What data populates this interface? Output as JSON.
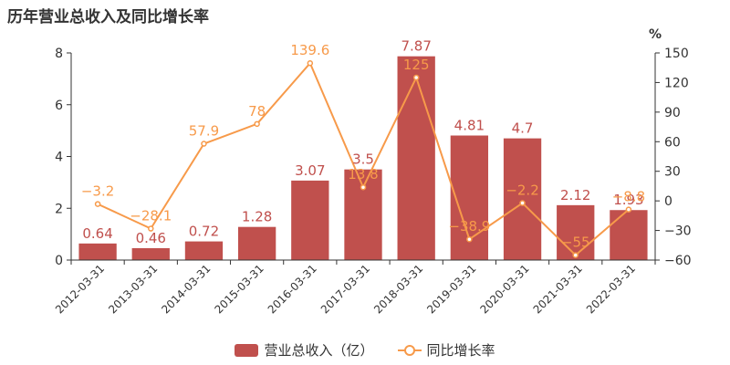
{
  "chart_data": {
    "type": "bar+line",
    "title": "历年营业总收入及同比增长率",
    "categories": [
      "2012-03-31",
      "2013-03-31",
      "2014-03-31",
      "2015-03-31",
      "2016-03-31",
      "2017-03-31",
      "2018-03-31",
      "2019-03-31",
      "2020-03-31",
      "2021-03-31",
      "2022-03-31"
    ],
    "series": [
      {
        "name": "营业总收入（亿）",
        "type": "bar",
        "axis": "left",
        "color": "#c0504d",
        "values": [
          0.64,
          0.46,
          0.72,
          1.28,
          3.07,
          3.5,
          7.87,
          4.81,
          4.7,
          2.12,
          1.93
        ],
        "labels": [
          "0.64",
          "0.46",
          "0.72",
          "1.28",
          "3.07",
          "3.5",
          "7.87",
          "4.81",
          "4.7",
          "2.12",
          "1.93"
        ]
      },
      {
        "name": "同比增长率",
        "type": "line",
        "axis": "right",
        "color": "#f79a4a",
        "values": [
          -3.2,
          -28.1,
          57.9,
          78,
          139.6,
          13.8,
          125,
          -38.9,
          -2.2,
          -55,
          -8.8
        ],
        "labels": [
          "−3.2",
          "−28.1",
          "57.9",
          "78",
          "139.6",
          "13.8",
          "125",
          "−38.9",
          "−2.2",
          "−55",
          "−8.8"
        ]
      }
    ],
    "y_left": {
      "min": 0,
      "max": 8,
      "ticks": [
        0,
        2,
        4,
        6,
        8
      ],
      "tick_labels": [
        "0",
        "2",
        "4",
        "6",
        "8"
      ]
    },
    "y_right": {
      "min": -60,
      "max": 150,
      "unit_label": "%",
      "ticks": [
        -60,
        -30,
        0,
        30,
        60,
        90,
        120,
        150
      ],
      "tick_labels": [
        "−60",
        "−30",
        "0",
        "30",
        "60",
        "90",
        "120",
        "150"
      ]
    },
    "grid": false,
    "legend_position": "bottom-center"
  }
}
